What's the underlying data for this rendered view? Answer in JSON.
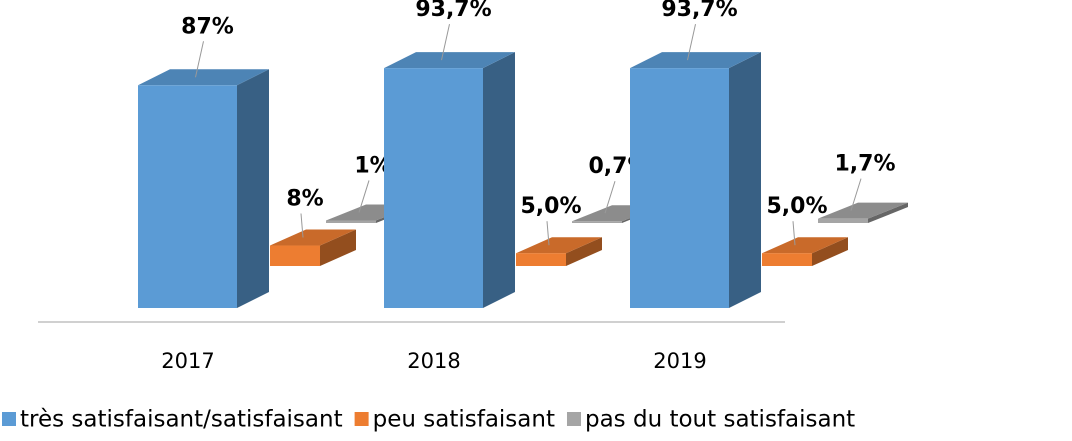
{
  "chart_data": {
    "type": "bar3d",
    "categories": [
      "2017",
      "2018",
      "2019"
    ],
    "series": [
      {
        "name": "très satisfaisant/satisfaisant",
        "color": "#5b9bd5",
        "values": [
          87,
          93.7,
          93.7
        ],
        "value_labels": [
          "87%",
          "93,7%",
          "93,7%"
        ]
      },
      {
        "name": "peu satisfaisant",
        "color": "#ed7d31",
        "values": [
          8,
          5.0,
          5.0
        ],
        "value_labels": [
          "8%",
          "5,0%",
          "5,0%"
        ]
      },
      {
        "name": "pas du tout satisfaisant",
        "color": "#a5a5a5",
        "values": [
          1,
          0.7,
          1.7
        ],
        "value_labels": [
          "1%",
          "0,7%",
          "1,7%"
        ]
      }
    ],
    "legend": "bottom"
  }
}
